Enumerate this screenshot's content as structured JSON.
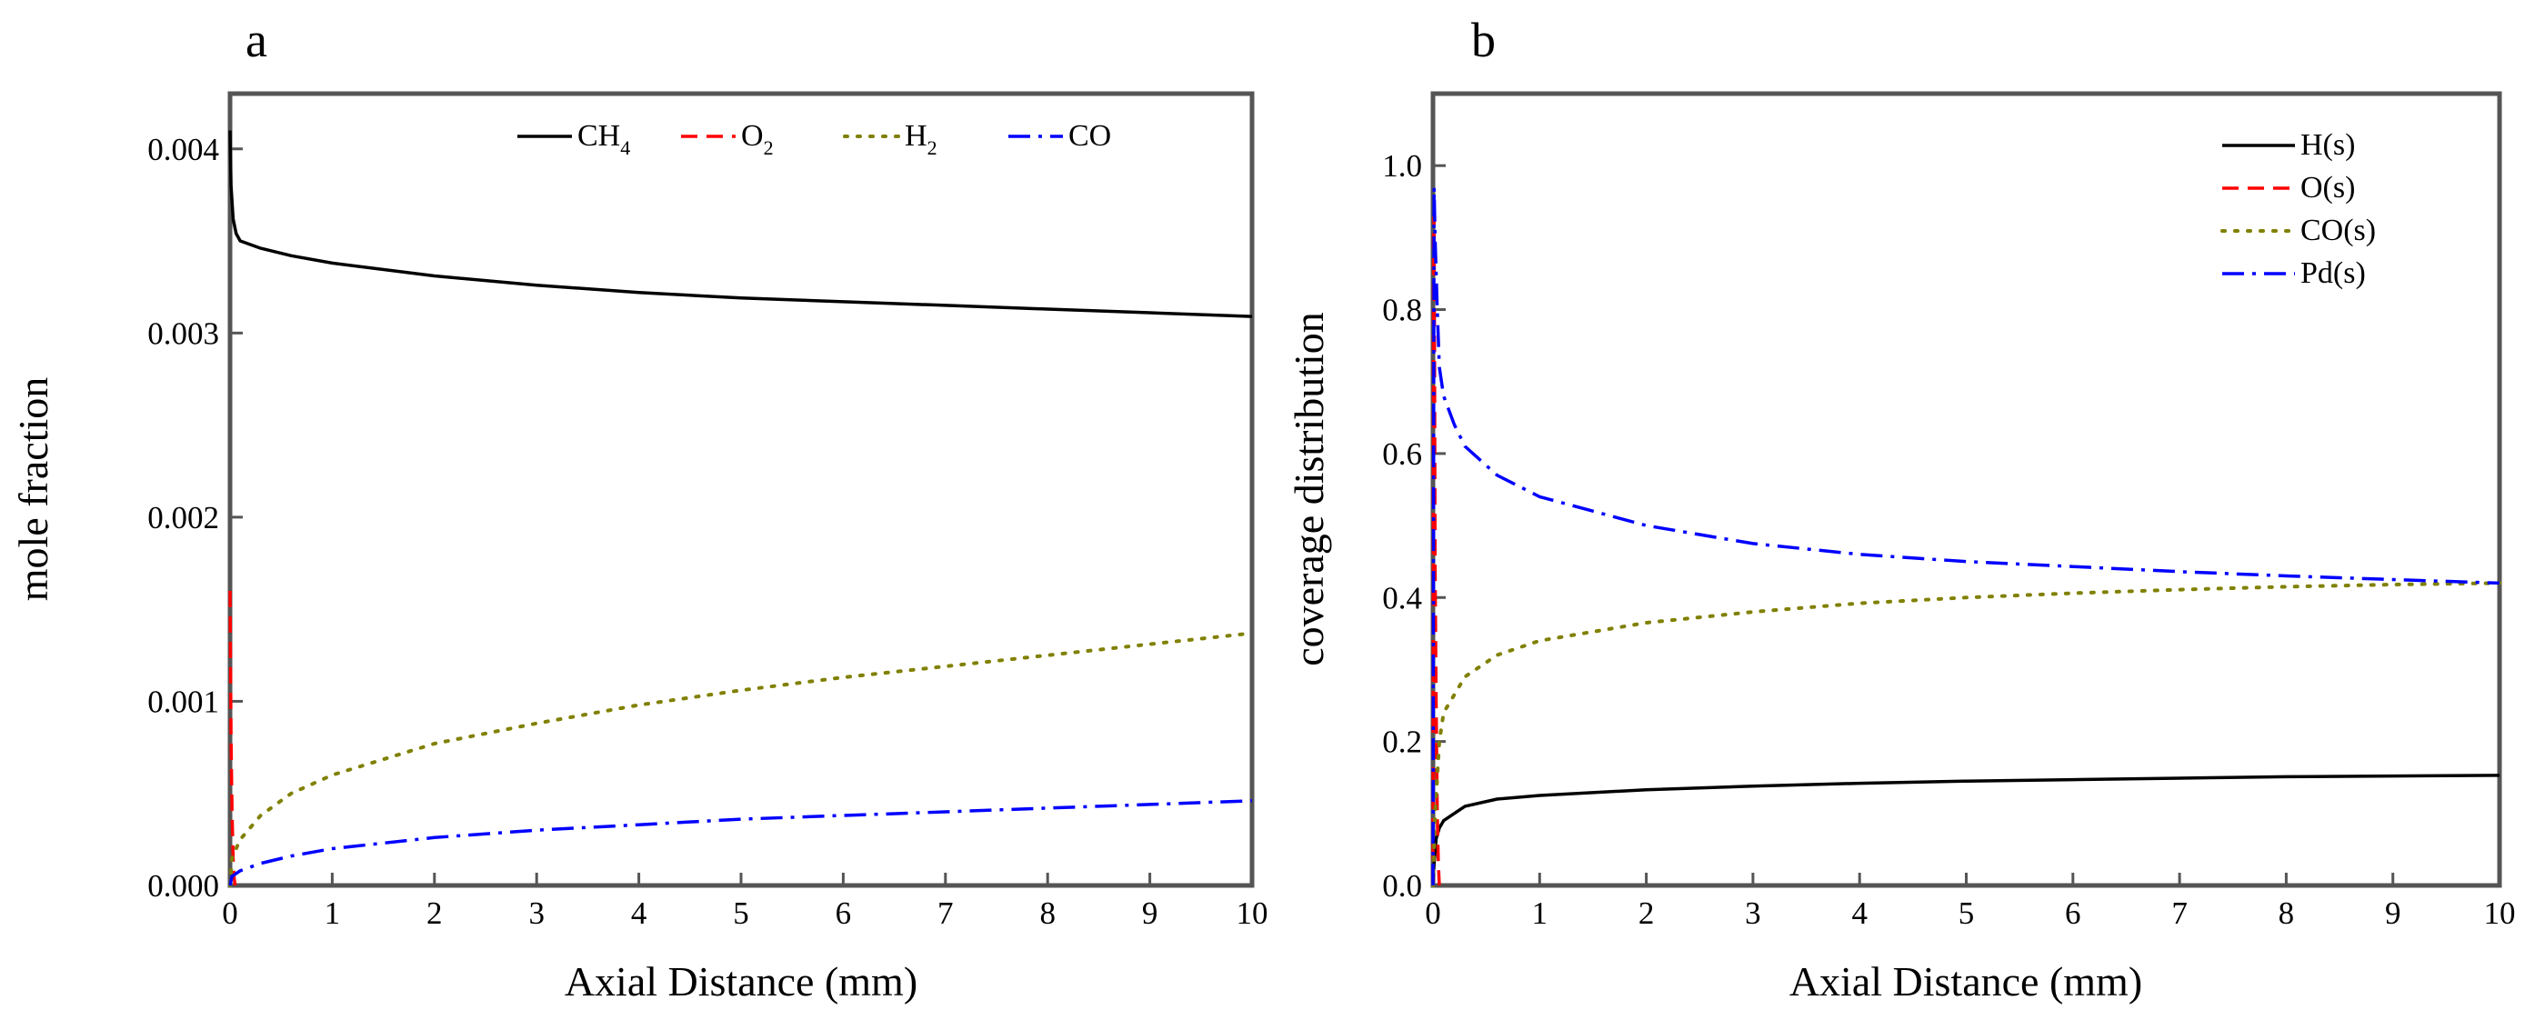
{
  "chart_data": [
    {
      "type": "line",
      "panel_label": "a",
      "xlabel": "Axial Distance (mm)",
      "ylabel": "mole fraction",
      "xlim": [
        0,
        10
      ],
      "ylim": [
        0,
        0.0043
      ],
      "xticks": [
        "0",
        "1",
        "2",
        "3",
        "4",
        "5",
        "6",
        "7",
        "8",
        "9",
        "10"
      ],
      "yticks": [
        "0.000",
        "0.001",
        "0.002",
        "0.003",
        "0.004"
      ],
      "legend_position": "top-right",
      "series": [
        {
          "name": "CH4",
          "label_main": "CH",
          "label_sub": "4",
          "color": "#000000",
          "dash": "solid",
          "x": [
            0,
            0.01,
            0.03,
            0.06,
            0.1,
            0.3,
            0.6,
            1,
            2,
            3,
            4,
            5,
            6,
            7,
            8,
            9,
            10
          ],
          "y": [
            0.0041,
            0.0038,
            0.00362,
            0.00354,
            0.0035,
            0.00346,
            0.00342,
            0.00338,
            0.00331,
            0.00326,
            0.00322,
            0.00319,
            0.00317,
            0.00315,
            0.00313,
            0.00311,
            0.00309
          ]
        },
        {
          "name": "O2",
          "label_main": "O",
          "label_sub": "2",
          "color": "#ff0000",
          "dash": "dash",
          "x": [
            0,
            0.005,
            0.01,
            0.02,
            0.03,
            0.04,
            0.05
          ],
          "y": [
            0.0016,
            0.0012,
            0.0008,
            0.0004,
            0.00015,
            4e-05,
            0.0
          ]
        },
        {
          "name": "H2",
          "label_main": "H",
          "label_sub": "2",
          "color": "#808000",
          "dash": "dot",
          "x": [
            0,
            0.02,
            0.1,
            0.3,
            0.6,
            1,
            2,
            3,
            4,
            5,
            6,
            7,
            8,
            9,
            10
          ],
          "y": [
            0.0,
            0.00015,
            0.00025,
            0.00038,
            0.0005,
            0.0006,
            0.00077,
            0.00088,
            0.00098,
            0.00106,
            0.00113,
            0.00119,
            0.00125,
            0.00131,
            0.00137
          ]
        },
        {
          "name": "CO",
          "label_main": "CO",
          "label_sub": "",
          "color": "#0000ff",
          "dash": "dashdot",
          "x": [
            0,
            0.02,
            0.1,
            0.3,
            0.6,
            1,
            2,
            3,
            4,
            5,
            6,
            7,
            8,
            9,
            10
          ],
          "y": [
            0.0,
            5e-05,
            8e-05,
            0.00012,
            0.00016,
            0.0002,
            0.00026,
            0.0003,
            0.00033,
            0.00036,
            0.00038,
            0.0004,
            0.00042,
            0.00044,
            0.00046
          ]
        }
      ]
    },
    {
      "type": "line",
      "panel_label": "b",
      "xlabel": "Axial Distance (mm)",
      "ylabel": "coverage distribution",
      "xlim": [
        0,
        10
      ],
      "ylim": [
        0,
        1.1
      ],
      "xticks": [
        "0",
        "1",
        "2",
        "3",
        "4",
        "5",
        "6",
        "7",
        "8",
        "9",
        "10"
      ],
      "yticks": [
        "0.0",
        "0.2",
        "0.4",
        "0.6",
        "0.8",
        "1.0"
      ],
      "legend_position": "top-right",
      "series": [
        {
          "name": "H(s)",
          "color": "#000000",
          "dash": "solid",
          "x": [
            0,
            0.01,
            0.03,
            0.06,
            0.1,
            0.3,
            0.6,
            1,
            2,
            3,
            4,
            5,
            6,
            7,
            8,
            9,
            10
          ],
          "y": [
            0.0,
            0.03,
            0.065,
            0.08,
            0.09,
            0.11,
            0.12,
            0.125,
            0.133,
            0.138,
            0.142,
            0.145,
            0.147,
            0.149,
            0.151,
            0.152,
            0.153
          ]
        },
        {
          "name": "O(s)",
          "color": "#ff0000",
          "dash": "dash",
          "x": [
            0,
            0.005,
            0.01,
            0.015,
            0.02,
            0.03,
            0.04,
            0.05,
            0.06
          ],
          "y": [
            0.0,
            0.9,
            0.93,
            0.7,
            0.45,
            0.25,
            0.1,
            0.03,
            0.0
          ]
        },
        {
          "name": "CO(s)",
          "color": "#808000",
          "dash": "dot",
          "x": [
            0,
            0.02,
            0.06,
            0.1,
            0.3,
            0.6,
            1,
            2,
            3,
            4,
            5,
            6,
            7,
            8,
            9,
            10
          ],
          "y": [
            0.0,
            0.1,
            0.2,
            0.24,
            0.29,
            0.32,
            0.34,
            0.365,
            0.38,
            0.392,
            0.4,
            0.406,
            0.411,
            0.415,
            0.418,
            0.42
          ]
        },
        {
          "name": "Pd(s)",
          "color": "#0000ff",
          "dash": "dashdot",
          "x": [
            0,
            0.01,
            0.02,
            0.04,
            0.06,
            0.1,
            0.2,
            0.3,
            0.6,
            1,
            2,
            3,
            4,
            5,
            6,
            7,
            8,
            9,
            10
          ],
          "y": [
            0.0,
            0.97,
            0.9,
            0.8,
            0.72,
            0.68,
            0.64,
            0.61,
            0.57,
            0.54,
            0.5,
            0.475,
            0.46,
            0.45,
            0.443,
            0.436,
            0.43,
            0.425,
            0.42
          ]
        }
      ]
    }
  ]
}
